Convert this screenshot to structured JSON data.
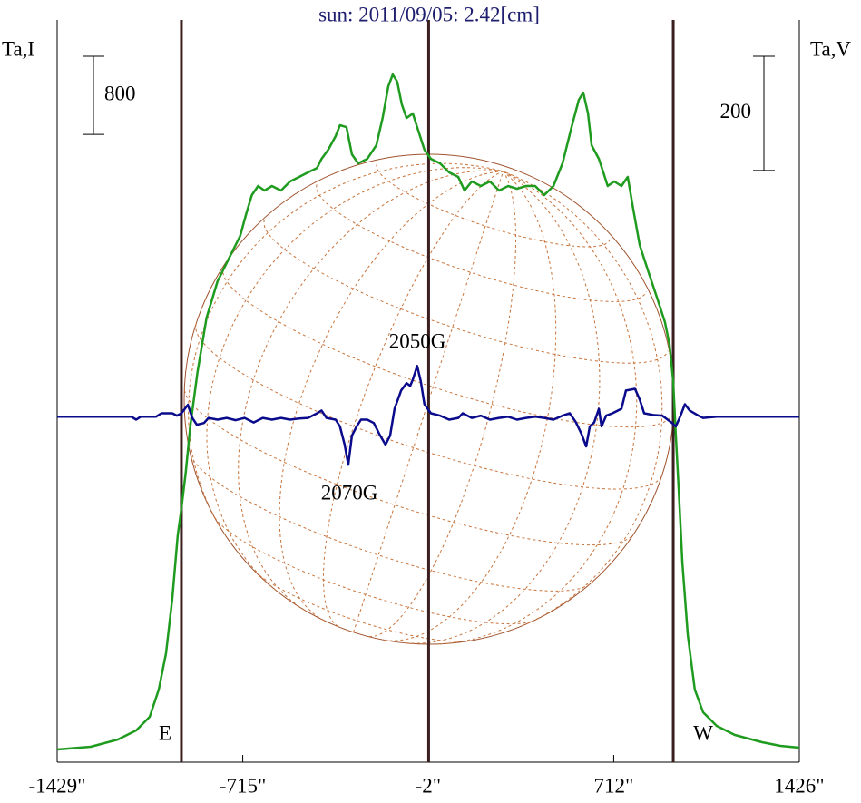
{
  "chart_data": {
    "type": "line",
    "title": "sun: 2011/09/05: 2.42[cm]",
    "ylabel": "Ta,I",
    "y2label": "Ta,V",
    "xlim": [
      -1429,
      1426
    ],
    "xticks": [
      {
        "value": -1429,
        "label": "-1429\""
      },
      {
        "value": -715,
        "label": "-715\""
      },
      {
        "value": -2,
        "label": "-2\""
      },
      {
        "value": 712,
        "label": "712\""
      },
      {
        "value": 1426,
        "label": "1426\""
      }
    ],
    "ylim": [
      0,
      7600
    ],
    "y2lim": [
      -605,
      695
    ],
    "scale_bars": [
      {
        "value": 800,
        "axis": "y"
      },
      {
        "value": 200,
        "axis": "y2"
      }
    ],
    "vlines": {
      "values": [
        -951,
        0,
        941
      ],
      "color": "#3b1f1f"
    },
    "annotations": [
      "2050G",
      "2070G",
      "E",
      "W"
    ],
    "series": [
      {
        "color": "#1f9b1f",
        "axis": "y",
        "x": [
          -1429,
          -1300,
          -1195,
          -1125,
          -1073,
          -1038,
          -1010,
          -986,
          -965,
          -951,
          -934,
          -917,
          -889,
          -854,
          -812,
          -760,
          -725,
          -701,
          -680,
          -656,
          -631,
          -603,
          -568,
          -533,
          -498,
          -464,
          -429,
          -412,
          -386,
          -358,
          -341,
          -316,
          -295,
          -271,
          -236,
          -201,
          -177,
          -155,
          -138,
          -121,
          -103,
          -85,
          -61,
          -44,
          -16,
          9,
          44,
          79,
          114,
          138,
          166,
          201,
          236,
          271,
          306,
          340,
          375,
          410,
          445,
          480,
          515,
          550,
          578,
          595,
          613,
          627,
          655,
          672,
          689,
          714,
          742,
          766,
          787,
          812,
          846,
          881,
          909,
          927,
          941,
          951,
          962,
          976,
          997,
          1024,
          1056,
          1108,
          1178,
          1283,
          1353,
          1426
        ],
        "values": [
          130,
          158,
          232,
          325,
          465,
          743,
          1115,
          1672,
          2323,
          2601,
          2973,
          3437,
          3995,
          4552,
          4924,
          5203,
          5389,
          5621,
          5807,
          5900,
          5853,
          5900,
          5853,
          5946,
          5993,
          6039,
          6085,
          6178,
          6271,
          6410,
          6522,
          6503,
          6224,
          6132,
          6178,
          6317,
          6596,
          6921,
          7042,
          6968,
          6735,
          6596,
          6643,
          6503,
          6271,
          6178,
          6132,
          6039,
          5993,
          5853,
          5946,
          5900,
          5946,
          5853,
          5900,
          5871,
          5900,
          5900,
          5807,
          5900,
          6132,
          6503,
          6782,
          6856,
          6643,
          6317,
          6178,
          6039,
          5900,
          5946,
          5900,
          5993,
          5667,
          5295,
          5017,
          4738,
          4506,
          4273,
          3902,
          3344,
          2787,
          2044,
          1301,
          743,
          511,
          372,
          279,
          204,
          167,
          149
        ]
      },
      {
        "color": "#0a0a8c",
        "axis": "y2",
        "x": [
          -1429,
          -1143,
          -1125,
          -1108,
          -1049,
          -1028,
          -986,
          -968,
          -951,
          -926,
          -909,
          -892,
          -864,
          -847,
          -812,
          -777,
          -742,
          -708,
          -673,
          -638,
          -603,
          -568,
          -533,
          -498,
          -464,
          -429,
          -412,
          -393,
          -358,
          -341,
          -323,
          -309,
          -295,
          -277,
          -260,
          -236,
          -211,
          -190,
          -166,
          -148,
          -131,
          -106,
          -85,
          -71,
          -61,
          -44,
          -30,
          -16,
          9,
          44,
          79,
          114,
          131,
          166,
          201,
          236,
          271,
          306,
          340,
          375,
          410,
          445,
          480,
          515,
          543,
          567,
          588,
          606,
          620,
          637,
          655,
          665,
          683,
          707,
          742,
          759,
          794,
          812,
          829,
          864,
          899,
          934,
          951,
          969,
          986,
          1004,
          1038,
          1056,
          1108,
          1426
        ],
        "values": [
          0,
          0,
          -5,
          0,
          0,
          6,
          6,
          2,
          6,
          21,
          -2,
          -14,
          -11,
          -2,
          -5,
          -2,
          -6,
          -2,
          -10,
          -2,
          -5,
          -2,
          -5,
          -3,
          -2,
          6,
          11,
          -2,
          -5,
          -17,
          -49,
          -84,
          -33,
          -17,
          -5,
          -5,
          -11,
          -30,
          -49,
          -33,
          14,
          46,
          59,
          54,
          65,
          89,
          62,
          22,
          6,
          2,
          -5,
          -2,
          6,
          -2,
          2,
          -5,
          -2,
          0,
          -5,
          -2,
          0,
          -2,
          -5,
          2,
          6,
          -10,
          -30,
          -52,
          -17,
          -10,
          14,
          -17,
          2,
          6,
          14,
          46,
          49,
          30,
          6,
          3,
          2,
          -10,
          -17,
          2,
          22,
          11,
          2,
          -2,
          0,
          0
        ]
      }
    ]
  }
}
